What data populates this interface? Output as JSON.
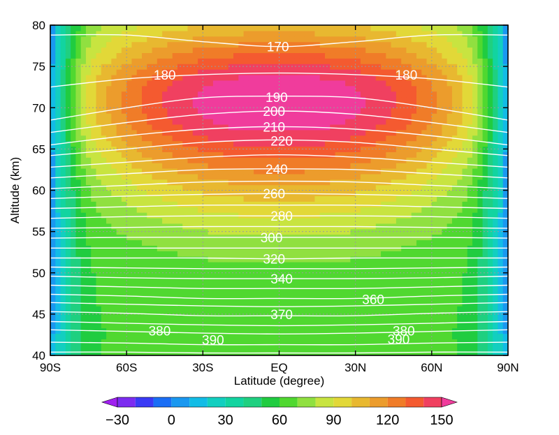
{
  "chart_data": {
    "type": "heatmap",
    "title": "",
    "xlabel": "Latitude (degree)",
    "ylabel": "Altitude (km)",
    "xlim": [
      -90,
      90
    ],
    "ylim": [
      40,
      80
    ],
    "grid": true,
    "x_ticks": [
      {
        "value": -90,
        "label": "90S"
      },
      {
        "value": -60,
        "label": "60S"
      },
      {
        "value": -30,
        "label": "30S"
      },
      {
        "value": 0,
        "label": "EQ"
      },
      {
        "value": 30,
        "label": "30N"
      },
      {
        "value": 60,
        "label": "60N"
      },
      {
        "value": 90,
        "label": "90N"
      }
    ],
    "y_ticks": [
      {
        "value": 40,
        "label": "40"
      },
      {
        "value": 45,
        "label": "45"
      },
      {
        "value": 50,
        "label": "50"
      },
      {
        "value": 55,
        "label": "55"
      },
      {
        "value": 60,
        "label": "60"
      },
      {
        "value": 65,
        "label": "65"
      },
      {
        "value": 70,
        "label": "70"
      },
      {
        "value": 75,
        "label": "75"
      },
      {
        "value": 80,
        "label": "80"
      }
    ],
    "colorbar": {
      "levels": [
        -40,
        -30,
        -20,
        -10,
        0,
        10,
        20,
        30,
        40,
        50,
        60,
        70,
        80,
        90,
        100,
        110,
        120,
        130,
        140,
        150,
        160
      ],
      "colors": [
        "#a020f0",
        "#7c2cf0",
        "#3a3af5",
        "#1a6ef5",
        "#1a98f0",
        "#12bce6",
        "#12cfc0",
        "#12d4a0",
        "#1fd080",
        "#20cc40",
        "#50d830",
        "#90e040",
        "#c8e440",
        "#e2d838",
        "#e8b830",
        "#ec9c2c",
        "#f07c28",
        "#f45a30",
        "#f04060",
        "#f03c9c"
      ],
      "tick_labels": [
        {
          "value": -30,
          "label": "−30"
        },
        {
          "value": 0,
          "label": "0"
        },
        {
          "value": 30,
          "label": "30"
        },
        {
          "value": 60,
          "label": "60"
        },
        {
          "value": 90,
          "label": "90"
        },
        {
          "value": 120,
          "label": "120"
        },
        {
          "value": 150,
          "label": "150"
        }
      ],
      "extend": "both",
      "placement": "bottom"
    },
    "filled_field_description_levels": [
      60,
      70,
      80,
      90,
      100,
      110,
      120,
      130,
      140
    ],
    "contours": {
      "color": "#ffffff",
      "lines": [
        {
          "label": "170",
          "y": [
            [
              -90,
              78.8
            ],
            [
              -60,
              78.8
            ],
            [
              -30,
              78.0
            ],
            [
              0,
              77.4
            ],
            [
              30,
              78.0
            ],
            [
              60,
              78.8
            ],
            [
              90,
              78.8
            ]
          ]
        },
        {
          "label": "180",
          "y": [
            [
              -90,
              72.5
            ],
            [
              -60,
              73.5
            ],
            [
              -30,
              74.0
            ],
            [
              0,
              74.2
            ],
            [
              30,
              74.0
            ],
            [
              60,
              73.5
            ],
            [
              90,
              72.5
            ]
          ]
        },
        {
          "label": "190",
          "y": [
            [
              -90,
              68.5
            ],
            [
              -60,
              70.0
            ],
            [
              -30,
              71.2
            ],
            [
              0,
              71.4
            ],
            [
              30,
              71.2
            ],
            [
              60,
              70.0
            ],
            [
              90,
              68.5
            ]
          ]
        },
        {
          "label": "200",
          "y": [
            [
              -90,
              67.0
            ],
            [
              -60,
              68.2
            ],
            [
              -30,
              69.2
            ],
            [
              0,
              69.6
            ],
            [
              30,
              69.2
            ],
            [
              60,
              68.2
            ],
            [
              90,
              67.0
            ]
          ]
        },
        {
          "label": "210",
          "y": [
            [
              -90,
              65.5
            ],
            [
              -60,
              66.6
            ],
            [
              -30,
              67.4
            ],
            [
              0,
              67.7
            ],
            [
              30,
              67.4
            ],
            [
              60,
              66.6
            ],
            [
              90,
              65.5
            ]
          ]
        },
        {
          "label": "220",
          "y": [
            [
              -90,
              64.2
            ],
            [
              -60,
              65.0
            ],
            [
              -30,
              65.8
            ],
            [
              0,
              66.1
            ],
            [
              30,
              65.8
            ],
            [
              60,
              65.0
            ],
            [
              90,
              64.2
            ]
          ]
        },
        {
          "label": "",
          "y": [
            [
              -90,
              62.8
            ],
            [
              -60,
              63.4
            ],
            [
              -30,
              64.0
            ],
            [
              0,
              64.3
            ],
            [
              30,
              64.0
            ],
            [
              60,
              63.4
            ],
            [
              90,
              62.8
            ]
          ]
        },
        {
          "label": "240",
          "y": [
            [
              -90,
              61.5
            ],
            [
              -60,
              62.0
            ],
            [
              -30,
              62.5
            ],
            [
              0,
              62.6
            ],
            [
              30,
              62.5
            ],
            [
              60,
              62.0
            ],
            [
              90,
              61.5
            ]
          ]
        },
        {
          "label": "",
          "y": [
            [
              -90,
              60.2
            ],
            [
              -60,
              60.6
            ],
            [
              -30,
              61.0
            ],
            [
              0,
              61.1
            ],
            [
              30,
              61.0
            ],
            [
              60,
              60.6
            ],
            [
              90,
              60.2
            ]
          ]
        },
        {
          "label": "260",
          "y": [
            [
              -90,
              59.0
            ],
            [
              -60,
              59.3
            ],
            [
              -30,
              59.5
            ],
            [
              0,
              59.6
            ],
            [
              30,
              59.5
            ],
            [
              60,
              59.3
            ],
            [
              90,
              59.0
            ]
          ]
        },
        {
          "label": "",
          "y": [
            [
              -90,
              57.8
            ],
            [
              -60,
              58.0
            ],
            [
              -30,
              58.2
            ],
            [
              0,
              58.2
            ],
            [
              30,
              58.2
            ],
            [
              60,
              58.0
            ],
            [
              90,
              57.8
            ]
          ]
        },
        {
          "label": "280",
          "y": [
            [
              -90,
              56.6
            ],
            [
              -60,
              56.8
            ],
            [
              -30,
              56.9
            ],
            [
              0,
              56.9
            ],
            [
              30,
              56.9
            ],
            [
              60,
              56.8
            ],
            [
              90,
              56.6
            ]
          ]
        },
        {
          "label": "",
          "y": [
            [
              -90,
              55.4
            ],
            [
              -60,
              55.5
            ],
            [
              -30,
              55.6
            ],
            [
              0,
              55.6
            ],
            [
              30,
              55.6
            ],
            [
              60,
              55.5
            ],
            [
              90,
              55.4
            ]
          ]
        },
        {
          "label": "300",
          "y": [
            [
              -90,
              54.2
            ],
            [
              -60,
              54.3
            ],
            [
              -30,
              54.3
            ],
            [
              0,
              54.3
            ],
            [
              30,
              54.3
            ],
            [
              60,
              54.3
            ],
            [
              90,
              54.2
            ]
          ]
        },
        {
          "label": "",
          "y": [
            [
              -90,
              53.0
            ],
            [
              -60,
              53.0
            ],
            [
              -30,
              53.0
            ],
            [
              0,
              53.0
            ],
            [
              30,
              53.0
            ],
            [
              60,
              53.0
            ],
            [
              90,
              53.0
            ]
          ]
        },
        {
          "label": "320",
          "y": [
            [
              -90,
              51.8
            ],
            [
              -60,
              51.8
            ],
            [
              -30,
              51.8
            ],
            [
              0,
              51.7
            ],
            [
              30,
              51.8
            ],
            [
              60,
              51.8
            ],
            [
              90,
              51.8
            ]
          ]
        },
        {
          "label": "",
          "y": [
            [
              -90,
              50.7
            ],
            [
              -60,
              50.6
            ],
            [
              -30,
              50.5
            ],
            [
              0,
              50.5
            ],
            [
              30,
              50.5
            ],
            [
              60,
              50.6
            ],
            [
              90,
              50.7
            ]
          ]
        },
        {
          "label": "340",
          "y": [
            [
              -90,
              49.6
            ],
            [
              -60,
              49.4
            ],
            [
              -30,
              49.3
            ],
            [
              0,
              49.3
            ],
            [
              30,
              49.3
            ],
            [
              60,
              49.4
            ],
            [
              90,
              49.6
            ]
          ]
        },
        {
          "label": "",
          "y": [
            [
              -90,
              48.5
            ],
            [
              -60,
              48.3
            ],
            [
              -30,
              48.1
            ],
            [
              0,
              48.1
            ],
            [
              30,
              48.1
            ],
            [
              60,
              48.3
            ],
            [
              90,
              48.5
            ]
          ]
        },
        {
          "label": "",
          "y": [
            [
              -90,
              47.4
            ],
            [
              -60,
              47.2
            ],
            [
              -30,
              46.9
            ],
            [
              0,
              46.9
            ],
            [
              30,
              46.9
            ],
            [
              60,
              47.2
            ],
            [
              90,
              47.4
            ]
          ]
        },
        {
          "label": "360",
          "y": [
            [
              -90,
              46.4
            ],
            [
              -60,
              46.2
            ],
            [
              -30,
              46.0
            ],
            [
              0,
              45.9
            ],
            [
              30,
              46.0
            ],
            [
              60,
              46.2
            ],
            [
              90,
              46.4
            ]
          ]
        },
        {
          "label": "370",
          "y": [
            [
              -90,
              45.3
            ],
            [
              -60,
              45.1
            ],
            [
              -30,
              44.8
            ],
            [
              0,
              44.8
            ],
            [
              30,
              44.8
            ],
            [
              60,
              45.1
            ],
            [
              90,
              45.3
            ]
          ]
        },
        {
          "label": "",
          "y": [
            [
              -90,
              44.1
            ],
            [
              -60,
              43.9
            ],
            [
              -30,
              43.7
            ],
            [
              0,
              43.6
            ],
            [
              30,
              43.7
            ],
            [
              60,
              43.9
            ],
            [
              90,
              44.1
            ]
          ]
        },
        {
          "label": "380",
          "y": [
            [
              -90,
              43.1
            ],
            [
              -60,
              42.9
            ],
            [
              -30,
              42.7
            ],
            [
              0,
              42.6
            ],
            [
              30,
              42.7
            ],
            [
              60,
              42.9
            ],
            [
              90,
              43.1
            ]
          ]
        },
        {
          "label": "390",
          "y": [
            [
              -90,
              41.6
            ],
            [
              -60,
              41.5
            ],
            [
              -30,
              41.3
            ],
            [
              0,
              41.3
            ],
            [
              30,
              41.3
            ],
            [
              60,
              41.5
            ],
            [
              90,
              41.6
            ]
          ]
        },
        {
          "label": "",
          "y": [
            [
              -90,
              40.4
            ],
            [
              -60,
              40.4
            ],
            [
              -30,
              40.3
            ],
            [
              0,
              40.3
            ],
            [
              30,
              40.3
            ],
            [
              60,
              40.4
            ],
            [
              90,
              40.4
            ]
          ]
        }
      ],
      "label_positions": [
        {
          "label": "170",
          "lat": -0.5,
          "alt": 77.4
        },
        {
          "label": "180",
          "lat": -45,
          "alt": 74.0
        },
        {
          "label": "180",
          "lat": 50,
          "alt": 74.0
        },
        {
          "label": "190",
          "lat": -1,
          "alt": 71.3
        },
        {
          "label": "200",
          "lat": -2,
          "alt": 69.6
        },
        {
          "label": "210",
          "lat": -2,
          "alt": 67.7
        },
        {
          "label": "220",
          "lat": 1,
          "alt": 66.0
        },
        {
          "label": "240",
          "lat": -1,
          "alt": 62.6
        },
        {
          "label": "260",
          "lat": -2,
          "alt": 59.6
        },
        {
          "label": "280",
          "lat": 1,
          "alt": 56.9
        },
        {
          "label": "300",
          "lat": -3,
          "alt": 54.3
        },
        {
          "label": "320",
          "lat": -2,
          "alt": 51.7
        },
        {
          "label": "340",
          "lat": 1,
          "alt": 49.3
        },
        {
          "label": "360",
          "lat": 37,
          "alt": 46.8
        },
        {
          "label": "370",
          "lat": 1,
          "alt": 45.0
        },
        {
          "label": "380",
          "lat": -47,
          "alt": 43.0
        },
        {
          "label": "380",
          "lat": 49,
          "alt": 43.0
        },
        {
          "label": "390",
          "lat": -26,
          "alt": 41.9
        },
        {
          "label": "390",
          "lat": 47,
          "alt": 42.0
        }
      ]
    }
  }
}
